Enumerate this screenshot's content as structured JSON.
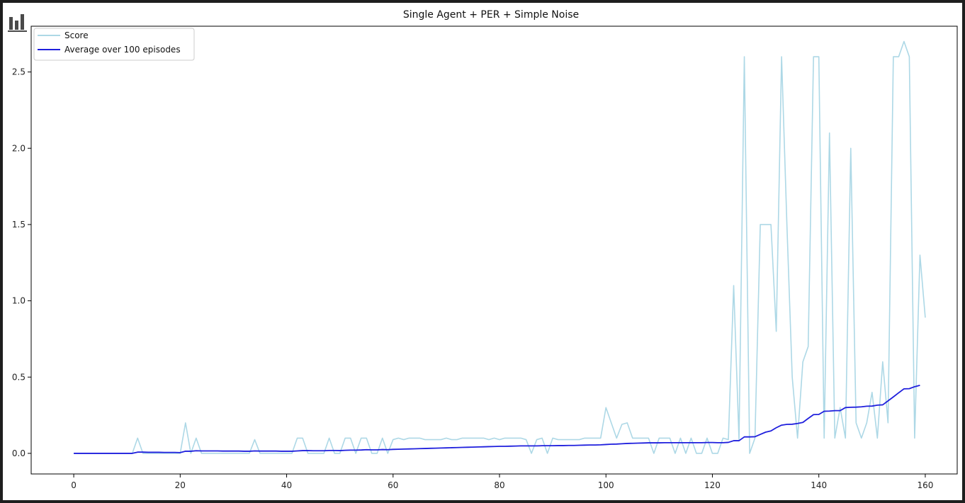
{
  "colors": {
    "score": "#add8e6",
    "average": "#1f1fdd"
  },
  "chart_data": {
    "type": "line",
    "title": "Single Agent + PER + Simple Noise",
    "xlabel": "",
    "ylabel": "",
    "xlim": [
      -8,
      166
    ],
    "ylim": [
      -0.135,
      2.8
    ],
    "xticks": [
      0,
      20,
      40,
      60,
      80,
      100,
      120,
      140,
      160
    ],
    "yticks": [
      0.0,
      0.5,
      1.0,
      1.5,
      2.0,
      2.5
    ],
    "ytick_labels": [
      "0.0",
      "0.5",
      "1.0",
      "1.5",
      "2.0",
      "2.5"
    ],
    "grid": false,
    "legend": "upper left",
    "series": [
      {
        "name": "Score",
        "values": [
          0,
          0,
          0,
          0,
          0,
          0,
          0,
          0,
          0,
          0,
          0,
          0,
          0.1,
          0,
          0,
          0,
          0,
          0,
          0,
          0,
          0,
          0.2,
          0,
          0.1,
          0,
          0,
          0,
          0,
          0,
          0,
          0,
          0,
          0,
          0,
          0.09,
          0,
          0,
          0,
          0,
          0,
          0,
          0,
          0.1,
          0.1,
          0,
          0,
          0,
          0,
          0.1,
          0,
          0,
          0.1,
          0.1,
          0,
          0.1,
          0.1,
          0,
          0,
          0.1,
          0,
          0.09,
          0.1,
          0.09,
          0.1,
          0.1,
          0.1,
          0.09,
          0.09,
          0.09,
          0.09,
          0.1,
          0.09,
          0.09,
          0.1,
          0.1,
          0.1,
          0.1,
          0.1,
          0.09,
          0.1,
          0.09,
          0.1,
          0.1,
          0.1,
          0.1,
          0.09,
          0,
          0.09,
          0.1,
          0,
          0.1,
          0.09,
          0.09,
          0.09,
          0.09,
          0.09,
          0.1,
          0.1,
          0.1,
          0.1,
          0.3,
          0.2,
          0.1,
          0.19,
          0.2,
          0.1,
          0.1,
          0.1,
          0.1,
          0,
          0.1,
          0.1,
          0.1,
          0,
          0.1,
          0,
          0.1,
          0,
          0,
          0.1,
          0,
          0,
          0.1,
          0.09,
          1.1,
          0.09,
          2.6,
          0,
          0.1,
          1.5,
          1.5,
          1.5,
          0.8,
          2.6,
          1.5,
          0.5,
          0.1,
          0.6,
          0.7,
          2.6,
          2.6,
          0.1,
          2.1,
          0.1,
          0.3,
          0.1,
          2.0,
          0.2,
          0.1,
          0.2,
          0.4,
          0.1,
          0.6,
          0.2,
          2.6,
          2.6,
          2.7,
          2.6,
          0.1,
          1.3,
          0.89
        ]
      },
      {
        "name": "Average over 100 episodes",
        "values": [
          0,
          0,
          0,
          0,
          0,
          0,
          0,
          0,
          0,
          0,
          0,
          0,
          0.008,
          0.008,
          0.007,
          0.007,
          0.007,
          0.006,
          0.006,
          0.006,
          0.005,
          0.014,
          0.014,
          0.017,
          0.016,
          0.016,
          0.016,
          0.016,
          0.015,
          0.015,
          0.015,
          0.015,
          0.014,
          0.014,
          0.016,
          0.015,
          0.015,
          0.015,
          0.015,
          0.014,
          0.014,
          0.014,
          0.016,
          0.018,
          0.018,
          0.017,
          0.017,
          0.017,
          0.019,
          0.019,
          0.018,
          0.02,
          0.021,
          0.021,
          0.022,
          0.024,
          0.023,
          0.023,
          0.025,
          0.024,
          0.026,
          0.027,
          0.028,
          0.029,
          0.03,
          0.031,
          0.032,
          0.033,
          0.034,
          0.035,
          0.036,
          0.037,
          0.038,
          0.039,
          0.04,
          0.041,
          0.042,
          0.043,
          0.044,
          0.045,
          0.046,
          0.046,
          0.047,
          0.048,
          0.049,
          0.049,
          0.049,
          0.049,
          0.05,
          0.05,
          0.05,
          0.051,
          0.051,
          0.052,
          0.052,
          0.053,
          0.054,
          0.055,
          0.055,
          0.056,
          0.058,
          0.06,
          0.061,
          0.063,
          0.065,
          0.066,
          0.067,
          0.068,
          0.069,
          0.069,
          0.069,
          0.07,
          0.07,
          0.07,
          0.07,
          0.07,
          0.07,
          0.07,
          0.07,
          0.071,
          0.071,
          0.07,
          0.07,
          0.072,
          0.083,
          0.083,
          0.108,
          0.108,
          0.109,
          0.124,
          0.139,
          0.147,
          0.168,
          0.185,
          0.19,
          0.191,
          0.196,
          0.203,
          0.229,
          0.254,
          0.255,
          0.276,
          0.277,
          0.28,
          0.28,
          0.3,
          0.302,
          0.303,
          0.305,
          0.309,
          0.31,
          0.316,
          0.318,
          0.344,
          0.37,
          0.397,
          0.423,
          0.424,
          0.437,
          0.446
        ]
      }
    ]
  }
}
